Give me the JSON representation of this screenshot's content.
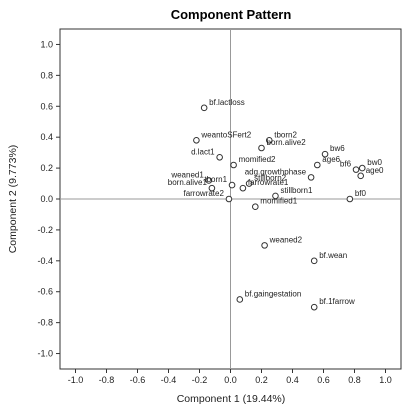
{
  "chart_data": {
    "type": "scatter",
    "title": "Component Pattern",
    "xlabel": "Component 1 (19.44%)",
    "ylabel": "Component 2 (9.773%)",
    "xlim": [
      -1.1,
      1.1
    ],
    "ylim": [
      -1.1,
      1.1
    ],
    "xticks": [
      "-1.0",
      "-0.8",
      "-0.6",
      "-0.4",
      "-0.2",
      "0.0",
      "0.2",
      "0.4",
      "0.6",
      "0.8",
      "1.0"
    ],
    "yticks": [
      "1.0",
      "0.8",
      "0.6",
      "0.4",
      "0.2",
      "0.0",
      "-0.2",
      "-0.4",
      "-0.6",
      "-0.8",
      "-1.0"
    ],
    "reference_lines": {
      "x": 0,
      "y": 0
    },
    "grid": false,
    "marker": "open-circle",
    "points": [
      {
        "label": "bf.lactloss",
        "x": -0.17,
        "y": 0.59,
        "anchor": "right"
      },
      {
        "label": "weantoSFert2",
        "x": -0.22,
        "y": 0.38,
        "anchor": "right"
      },
      {
        "label": "tborn2",
        "x": 0.25,
        "y": 0.38,
        "anchor": "right"
      },
      {
        "label": "d.lact1",
        "x": -0.07,
        "y": 0.27,
        "anchor": "left"
      },
      {
        "label": "momified2",
        "x": 0.02,
        "y": 0.22,
        "anchor": "right"
      },
      {
        "label": "born.alive2",
        "x": 0.2,
        "y": 0.33,
        "anchor": "right"
      },
      {
        "label": "bw6",
        "x": 0.61,
        "y": 0.29,
        "anchor": "right"
      },
      {
        "label": "age6",
        "x": 0.56,
        "y": 0.22,
        "anchor": "right"
      },
      {
        "label": "bw0",
        "x": 0.85,
        "y": 0.2,
        "anchor": "right"
      },
      {
        "label": "bf6",
        "x": 0.81,
        "y": 0.19,
        "anchor": "left"
      },
      {
        "label": "age0",
        "x": 0.84,
        "y": 0.15,
        "anchor": "right"
      },
      {
        "label": "adg.growthphase",
        "x": 0.52,
        "y": 0.14,
        "anchor": "left"
      },
      {
        "label": "stillborn2",
        "x": 0.12,
        "y": 0.1,
        "anchor": "right"
      },
      {
        "label": "tborn1",
        "x": 0.01,
        "y": 0.09,
        "anchor": "left"
      },
      {
        "label": "weaned1",
        "x": -0.14,
        "y": 0.12,
        "anchor": "left"
      },
      {
        "label": "born.alive1",
        "x": -0.12,
        "y": 0.07,
        "anchor": "left"
      },
      {
        "label": "farrowrate1",
        "x": 0.08,
        "y": 0.07,
        "anchor": "right"
      },
      {
        "label": "farrowrate2",
        "x": -0.01,
        "y": 0.0,
        "anchor": "left"
      },
      {
        "label": "stillborn1",
        "x": 0.29,
        "y": 0.02,
        "anchor": "right"
      },
      {
        "label": "momified1",
        "x": 0.16,
        "y": -0.05,
        "anchor": "right"
      },
      {
        "label": "bf0",
        "x": 0.77,
        "y": 0.0,
        "anchor": "right"
      },
      {
        "label": "weaned2",
        "x": 0.22,
        "y": -0.3,
        "anchor": "right"
      },
      {
        "label": "bf.wean",
        "x": 0.54,
        "y": -0.4,
        "anchor": "right"
      },
      {
        "label": "bf.gaingestation",
        "x": 0.06,
        "y": -0.65,
        "anchor": "right"
      },
      {
        "label": "bf.1farrow",
        "x": 0.54,
        "y": -0.7,
        "anchor": "right"
      }
    ]
  }
}
